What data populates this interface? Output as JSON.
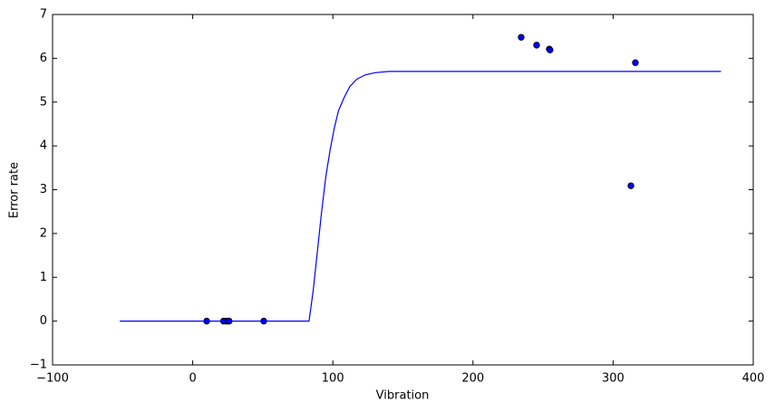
{
  "chart_data": {
    "type": "scatter",
    "x_label": "Vibration",
    "y_label": "Error rate",
    "xlim": [
      -100,
      400
    ],
    "xticks": [
      {
        "value": -100,
        "label": "−100"
      },
      0,
      100,
      200,
      300,
      400
    ],
    "ylim": [
      -1,
      7
    ],
    "yticks": [
      {
        "value": -1,
        "label": "−1"
      },
      0,
      1,
      2,
      3,
      4,
      5,
      6,
      7
    ],
    "series": [
      {
        "type": "scatter",
        "color": "#0000ff",
        "x": [
          10,
          22,
          24,
          25.5,
          26,
          50.7,
          234.4,
          245.4,
          254.5,
          255,
          315.9,
          312.7
        ],
        "values": [
          0,
          0,
          0,
          0,
          0,
          0,
          6.48,
          6.3,
          6.21,
          6.19,
          5.9,
          3.09
        ]
      },
      {
        "type": "line",
        "color": "#0000ff",
        "x": [
          -52,
          83,
          86,
          89,
          92,
          95,
          98,
          101,
          104,
          108,
          112,
          117,
          123,
          130,
          140,
          377
        ],
        "values": [
          0,
          0,
          0.7,
          1.6,
          2.5,
          3.3,
          3.9,
          4.4,
          4.8,
          5.1,
          5.35,
          5.52,
          5.62,
          5.67,
          5.7,
          5.7
        ]
      }
    ]
  }
}
